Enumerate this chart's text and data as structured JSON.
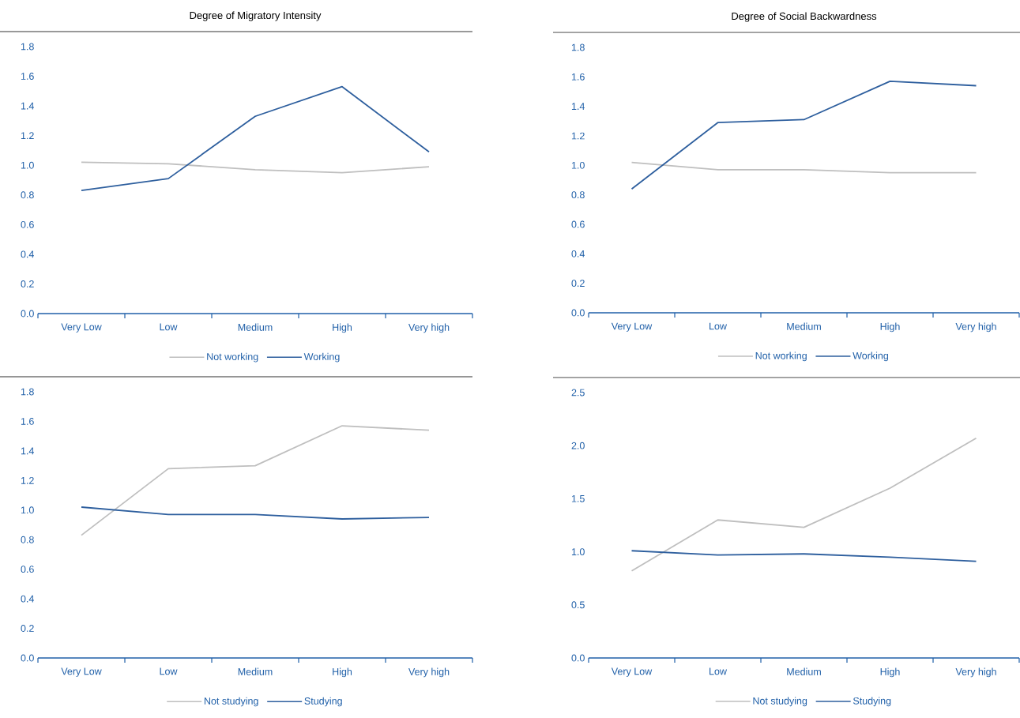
{
  "chart_data": [
    {
      "type": "line",
      "title": "Degree of Migratory Intensity",
      "categories": [
        "Very Low",
        "Low",
        "Medium",
        "High",
        "Very high"
      ],
      "series": [
        {
          "name": "Not working",
          "color": "#bfbfbf",
          "values": [
            1.02,
            1.01,
            0.97,
            0.95,
            0.99
          ]
        },
        {
          "name": "Working",
          "color": "#2e5f9e",
          "values": [
            0.83,
            0.91,
            1.33,
            1.53,
            1.09
          ]
        }
      ],
      "ylim": [
        0,
        1.8
      ],
      "yticks": [
        {
          "value": 0,
          "label": "0.0"
        },
        0.2,
        0.4,
        0.6,
        0.8,
        {
          "value": 1,
          "label": "1.0"
        },
        1.2,
        1.4,
        1.6,
        1.8
      ],
      "legend": "bottom"
    },
    {
      "type": "line",
      "title": "Degree of Social Backwardness",
      "categories": [
        "Very Low",
        "Low",
        "Medium",
        "High",
        "Very high"
      ],
      "series": [
        {
          "name": "Not working",
          "color": "#bfbfbf",
          "values": [
            1.02,
            0.97,
            0.97,
            0.95,
            0.95
          ]
        },
        {
          "name": "Working",
          "color": "#2e5f9e",
          "values": [
            0.84,
            1.29,
            1.31,
            1.57,
            1.54
          ]
        }
      ],
      "ylim": [
        0,
        1.8
      ],
      "yticks": [
        {
          "value": 0,
          "label": "0.0"
        },
        0.2,
        0.4,
        0.6,
        0.8,
        {
          "value": 1,
          "label": "1.0"
        },
        1.2,
        1.4,
        1.6,
        1.8
      ],
      "legend": "bottom"
    },
    {
      "type": "line",
      "categories": [
        "Very Low",
        "Low",
        "Medium",
        "High",
        "Very high"
      ],
      "series": [
        {
          "name": "Not studying",
          "color": "#bfbfbf",
          "values": [
            0.83,
            1.28,
            1.3,
            1.57,
            1.54
          ]
        },
        {
          "name": "Studying",
          "color": "#2e5f9e",
          "values": [
            1.02,
            0.97,
            0.97,
            0.94,
            0.95
          ]
        }
      ],
      "ylim": [
        0,
        1.8
      ],
      "yticks": [
        {
          "value": 0,
          "label": "0.0"
        },
        0.2,
        0.4,
        0.6,
        0.8,
        {
          "value": 1,
          "label": "1.0"
        },
        1.2,
        1.4,
        1.6,
        1.8
      ],
      "legend": "bottom"
    },
    {
      "type": "line",
      "categories": [
        "Very Low",
        "Low",
        "Medium",
        "High",
        "Very high"
      ],
      "series": [
        {
          "name": "Not studying",
          "color": "#bfbfbf",
          "values": [
            0.82,
            1.3,
            1.23,
            1.6,
            2.07
          ]
        },
        {
          "name": "Studying",
          "color": "#2e5f9e",
          "values": [
            1.01,
            0.97,
            0.98,
            0.95,
            0.91
          ]
        }
      ],
      "ylim": [
        0,
        2.5
      ],
      "yticks": [
        {
          "value": 0,
          "label": "0.0"
        },
        0.5,
        {
          "value": 1,
          "label": "1.0"
        },
        1.5,
        {
          "value": 2,
          "label": "2.0"
        },
        2.5
      ],
      "legend": "bottom"
    }
  ]
}
